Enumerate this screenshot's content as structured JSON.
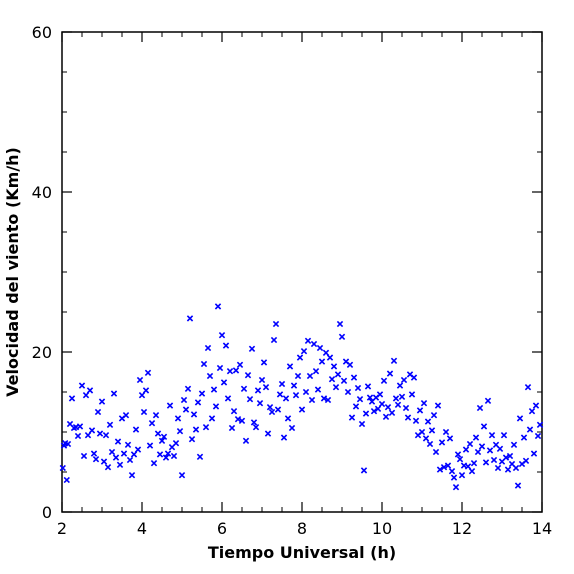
{
  "chart_data": {
    "type": "scatter",
    "xlabel": "Tiempo Universal (h)",
    "ylabel": "Velocidad del viento (Km/h)",
    "xlim": [
      2,
      14
    ],
    "ylim": [
      0,
      60
    ],
    "xticks": [
      2,
      4,
      6,
      8,
      10,
      12,
      14
    ],
    "yticks": [
      0,
      20,
      40,
      60
    ],
    "x_tick_labels": [
      "2",
      "4",
      "6",
      "8",
      "10",
      "12",
      "14"
    ],
    "y_tick_labels": [
      "0",
      "20",
      "40",
      "60"
    ],
    "marker": "x",
    "color": "#0000ff",
    "grid": false,
    "series": [
      {
        "points": [
          [
            2.02,
            5.5
          ],
          [
            2.05,
            8.3
          ],
          [
            2.08,
            8.6
          ],
          [
            2.12,
            4.0
          ],
          [
            2.15,
            8.5
          ],
          [
            2.2,
            11.0
          ],
          [
            2.25,
            14.2
          ],
          [
            2.3,
            10.5
          ],
          [
            2.35,
            10.6
          ],
          [
            2.4,
            9.5
          ],
          [
            2.45,
            10.7
          ],
          [
            2.5,
            15.8
          ],
          [
            2.55,
            7.0
          ],
          [
            2.6,
            14.6
          ],
          [
            2.65,
            9.6
          ],
          [
            2.7,
            15.2
          ],
          [
            2.75,
            10.2
          ],
          [
            2.8,
            7.3
          ],
          [
            2.85,
            6.6
          ],
          [
            2.9,
            12.5
          ],
          [
            2.95,
            9.8
          ],
          [
            3.0,
            13.8
          ],
          [
            3.05,
            6.3
          ],
          [
            3.1,
            9.6
          ],
          [
            3.15,
            5.6
          ],
          [
            3.2,
            10.9
          ],
          [
            3.25,
            7.5
          ],
          [
            3.3,
            14.8
          ],
          [
            3.35,
            6.8
          ],
          [
            3.4,
            8.8
          ],
          [
            3.45,
            5.9
          ],
          [
            3.5,
            11.7
          ],
          [
            3.55,
            7.3
          ],
          [
            3.6,
            12.1
          ],
          [
            3.65,
            8.4
          ],
          [
            3.7,
            6.5
          ],
          [
            3.75,
            4.6
          ],
          [
            3.8,
            7.2
          ],
          [
            3.85,
            10.3
          ],
          [
            3.9,
            7.8
          ],
          [
            3.95,
            16.5
          ],
          [
            4.0,
            14.6
          ],
          [
            4.05,
            12.5
          ],
          [
            4.1,
            15.2
          ],
          [
            4.15,
            17.4
          ],
          [
            4.2,
            8.3
          ],
          [
            4.25,
            11.1
          ],
          [
            4.3,
            6.1
          ],
          [
            4.35,
            12.1
          ],
          [
            4.4,
            9.8
          ],
          [
            4.45,
            7.2
          ],
          [
            4.5,
            8.9
          ],
          [
            4.55,
            9.4
          ],
          [
            4.6,
            6.8
          ],
          [
            4.65,
            7.3
          ],
          [
            4.7,
            13.3
          ],
          [
            4.75,
            8.1
          ],
          [
            4.8,
            7.0
          ],
          [
            4.85,
            8.6
          ],
          [
            4.9,
            11.7
          ],
          [
            4.95,
            10.1
          ],
          [
            5.0,
            4.6
          ],
          [
            5.05,
            14.0
          ],
          [
            5.1,
            12.8
          ],
          [
            5.15,
            15.4
          ],
          [
            5.2,
            24.2
          ],
          [
            5.25,
            9.1
          ],
          [
            5.3,
            12.2
          ],
          [
            5.35,
            10.3
          ],
          [
            5.4,
            13.7
          ],
          [
            5.45,
            6.9
          ],
          [
            5.5,
            14.8
          ],
          [
            5.55,
            18.5
          ],
          [
            5.6,
            10.6
          ],
          [
            5.65,
            20.5
          ],
          [
            5.7,
            17.0
          ],
          [
            5.75,
            11.7
          ],
          [
            5.8,
            15.3
          ],
          [
            5.85,
            13.2
          ],
          [
            5.9,
            25.7
          ],
          [
            5.95,
            18.0
          ],
          [
            6.0,
            22.1
          ],
          [
            6.05,
            16.2
          ],
          [
            6.1,
            20.8
          ],
          [
            6.15,
            14.2
          ],
          [
            6.2,
            17.6
          ],
          [
            6.25,
            10.5
          ],
          [
            6.3,
            12.6
          ],
          [
            6.35,
            17.7
          ],
          [
            6.4,
            11.6
          ],
          [
            6.45,
            18.4
          ],
          [
            6.5,
            11.4
          ],
          [
            6.55,
            15.4
          ],
          [
            6.6,
            8.9
          ],
          [
            6.65,
            17.1
          ],
          [
            6.7,
            14.1
          ],
          [
            6.75,
            20.4
          ],
          [
            6.8,
            11.2
          ],
          [
            6.85,
            10.6
          ],
          [
            6.9,
            15.2
          ],
          [
            6.95,
            13.6
          ],
          [
            7.0,
            16.5
          ],
          [
            7.05,
            18.7
          ],
          [
            7.1,
            15.6
          ],
          [
            7.15,
            9.8
          ],
          [
            7.2,
            13.1
          ],
          [
            7.25,
            12.5
          ],
          [
            7.3,
            21.5
          ],
          [
            7.35,
            23.5
          ],
          [
            7.4,
            12.8
          ],
          [
            7.45,
            14.7
          ],
          [
            7.5,
            16.0
          ],
          [
            7.55,
            9.3
          ],
          [
            7.6,
            14.2
          ],
          [
            7.65,
            11.7
          ],
          [
            7.7,
            18.2
          ],
          [
            7.75,
            10.5
          ],
          [
            7.8,
            15.8
          ],
          [
            7.85,
            14.6
          ],
          [
            7.9,
            17.0
          ],
          [
            7.95,
            19.3
          ],
          [
            8.0,
            12.8
          ],
          [
            8.05,
            20.1
          ],
          [
            8.1,
            15.0
          ],
          [
            8.15,
            21.4
          ],
          [
            8.2,
            17.0
          ],
          [
            8.25,
            14.0
          ],
          [
            8.3,
            21.0
          ],
          [
            8.35,
            17.6
          ],
          [
            8.4,
            15.3
          ],
          [
            8.45,
            20.5
          ],
          [
            8.5,
            18.8
          ],
          [
            8.55,
            14.2
          ],
          [
            8.6,
            19.9
          ],
          [
            8.65,
            14.0
          ],
          [
            8.7,
            19.3
          ],
          [
            8.75,
            16.6
          ],
          [
            8.8,
            18.2
          ],
          [
            8.85,
            15.6
          ],
          [
            8.9,
            17.2
          ],
          [
            8.95,
            23.5
          ],
          [
            9.0,
            21.9
          ],
          [
            9.05,
            16.4
          ],
          [
            9.1,
            18.8
          ],
          [
            9.15,
            15.0
          ],
          [
            9.2,
            18.4
          ],
          [
            9.25,
            11.8
          ],
          [
            9.3,
            16.8
          ],
          [
            9.35,
            13.2
          ],
          [
            9.4,
            15.5
          ],
          [
            9.45,
            14.1
          ],
          [
            9.5,
            11.0
          ],
          [
            9.55,
            5.2
          ],
          [
            9.6,
            12.3
          ],
          [
            9.65,
            15.7
          ],
          [
            9.7,
            14.3
          ],
          [
            9.75,
            13.8
          ],
          [
            9.8,
            12.6
          ],
          [
            9.85,
            14.3
          ],
          [
            9.9,
            12.9
          ],
          [
            9.95,
            14.7
          ],
          [
            10.0,
            13.5
          ],
          [
            10.05,
            16.4
          ],
          [
            10.1,
            11.9
          ],
          [
            10.15,
            13.1
          ],
          [
            10.2,
            17.3
          ],
          [
            10.25,
            12.4
          ],
          [
            10.3,
            18.9
          ],
          [
            10.35,
            14.2
          ],
          [
            10.4,
            13.4
          ],
          [
            10.45,
            15.8
          ],
          [
            10.5,
            14.4
          ],
          [
            10.55,
            16.5
          ],
          [
            10.6,
            13.0
          ],
          [
            10.65,
            11.8
          ],
          [
            10.7,
            17.2
          ],
          [
            10.75,
            14.7
          ],
          [
            10.8,
            16.8
          ],
          [
            10.85,
            11.4
          ],
          [
            10.9,
            9.6
          ],
          [
            10.95,
            12.7
          ],
          [
            11.0,
            10.0
          ],
          [
            11.05,
            13.6
          ],
          [
            11.1,
            9.2
          ],
          [
            11.15,
            11.3
          ],
          [
            11.2,
            8.5
          ],
          [
            11.25,
            10.2
          ],
          [
            11.3,
            12.1
          ],
          [
            11.35,
            7.5
          ],
          [
            11.4,
            13.3
          ],
          [
            11.45,
            5.3
          ],
          [
            11.5,
            8.7
          ],
          [
            11.55,
            5.6
          ],
          [
            11.6,
            10.0
          ],
          [
            11.65,
            5.8
          ],
          [
            11.7,
            9.2
          ],
          [
            11.75,
            5.1
          ],
          [
            11.8,
            4.3
          ],
          [
            11.85,
            3.1
          ],
          [
            11.9,
            7.2
          ],
          [
            11.95,
            6.6
          ],
          [
            12.0,
            4.6
          ],
          [
            12.05,
            5.8
          ],
          [
            12.1,
            7.8
          ],
          [
            12.15,
            5.7
          ],
          [
            12.2,
            8.5
          ],
          [
            12.25,
            5.1
          ],
          [
            12.3,
            6.1
          ],
          [
            12.35,
            9.3
          ],
          [
            12.4,
            7.5
          ],
          [
            12.45,
            13.0
          ],
          [
            12.5,
            8.2
          ],
          [
            12.55,
            10.7
          ],
          [
            12.6,
            6.2
          ],
          [
            12.65,
            13.9
          ],
          [
            12.7,
            7.7
          ],
          [
            12.75,
            9.6
          ],
          [
            12.8,
            6.5
          ],
          [
            12.85,
            8.4
          ],
          [
            12.9,
            5.5
          ],
          [
            12.95,
            7.9
          ],
          [
            13.0,
            6.3
          ],
          [
            13.05,
            9.6
          ],
          [
            13.1,
            6.8
          ],
          [
            13.15,
            5.3
          ],
          [
            13.2,
            7.0
          ],
          [
            13.25,
            6.0
          ],
          [
            13.3,
            8.4
          ],
          [
            13.35,
            5.5
          ],
          [
            13.4,
            3.3
          ],
          [
            13.45,
            11.7
          ],
          [
            13.5,
            6.0
          ],
          [
            13.55,
            9.3
          ],
          [
            13.6,
            6.4
          ],
          [
            13.65,
            15.6
          ],
          [
            13.7,
            10.3
          ],
          [
            13.75,
            12.6
          ],
          [
            13.8,
            7.3
          ],
          [
            13.85,
            13.3
          ],
          [
            13.9,
            9.5
          ],
          [
            13.95,
            10.9
          ]
        ]
      }
    ]
  }
}
